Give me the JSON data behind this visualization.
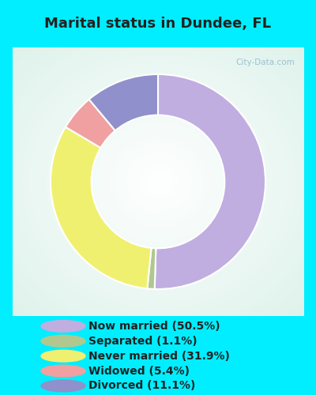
{
  "title": "Marital status in Dundee, FL",
  "slices": [
    {
      "label": "Now married (50.5%)",
      "value": 50.5,
      "color": "#c0aee0"
    },
    {
      "label": "Separated (1.1%)",
      "value": 1.1,
      "color": "#b0c890"
    },
    {
      "label": "Never married (31.9%)",
      "value": 31.9,
      "color": "#f0f070"
    },
    {
      "label": "Widowed (5.4%)",
      "value": 5.4,
      "color": "#f0a0a0"
    },
    {
      "label": "Divorced (11.1%)",
      "value": 11.1,
      "color": "#9090cc"
    }
  ],
  "bg_outer": "#00eeff",
  "title_color": "#222222",
  "title_fontsize": 13,
  "legend_fontsize": 10,
  "watermark": "City-Data.com",
  "start_angle": 90,
  "donut_width": 0.38
}
